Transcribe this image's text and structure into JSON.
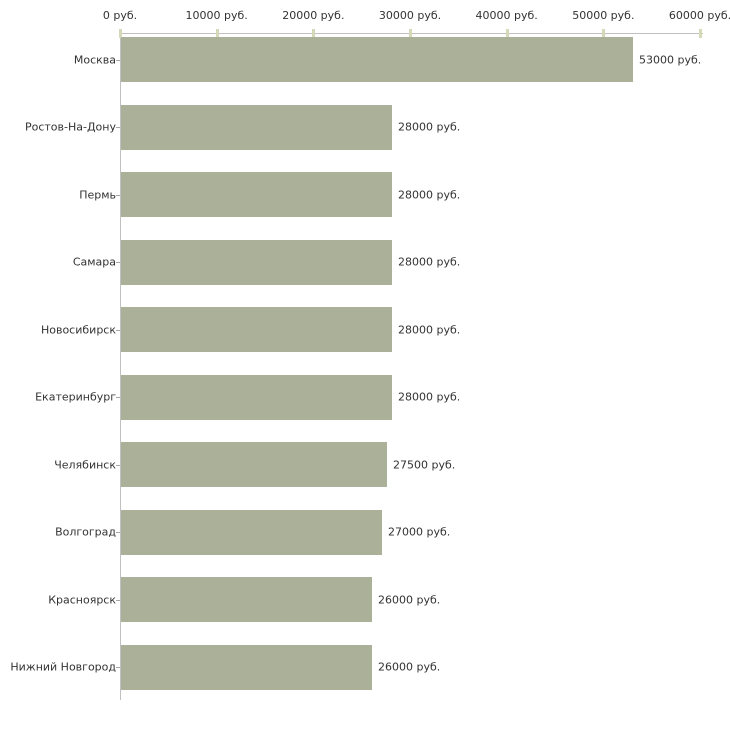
{
  "chart_data": {
    "type": "bar",
    "orientation": "horizontal",
    "title": "",
    "xlabel": "",
    "ylabel": "",
    "unit": "руб.",
    "categories": [
      "Москва",
      "Ростов-На-Дону",
      "Пермь",
      "Самара",
      "Новосибирск",
      "Екатеринбург",
      "Челябинск",
      "Волгоград",
      "Красноярск",
      "Нижний Новгород"
    ],
    "values": [
      53000,
      28000,
      28000,
      28000,
      28000,
      28000,
      27500,
      27000,
      26000,
      26000
    ],
    "value_labels": [
      "53000 руб.",
      "28000 руб.",
      "28000 руб.",
      "28000 руб.",
      "28000 руб.",
      "28000 руб.",
      "27500 руб.",
      "27000 руб.",
      "26000 руб.",
      "26000 руб."
    ],
    "xlim": [
      0,
      60000
    ],
    "x_ticks": [
      0,
      10000,
      20000,
      30000,
      40000,
      50000,
      60000
    ],
    "x_tick_labels": [
      "0 руб.",
      "10000 руб.",
      "20000 руб.",
      "30000 руб.",
      "40000 руб.",
      "50000 руб.",
      "60000 руб."
    ],
    "grid": false,
    "legend_position": "none",
    "colors": {
      "bar": "#abb198",
      "axis": "#c0c0c0",
      "x_tick_mark": "#d6d9b7",
      "text": "#333333",
      "background": "#ffffff"
    }
  }
}
